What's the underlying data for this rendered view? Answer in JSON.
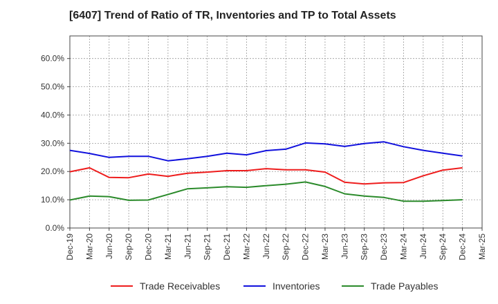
{
  "chart_data": {
    "type": "line",
    "title": "[6407]  Trend of Ratio of TR, Inventories and TP to Total Assets",
    "xlabel": "",
    "ylabel": "",
    "ylim": [
      0,
      0.68
    ],
    "y_ticks": [
      {
        "value": 0.0,
        "label": "0.0%"
      },
      {
        "value": 0.1,
        "label": "10.0%"
      },
      {
        "value": 0.2,
        "label": "20.0%"
      },
      {
        "value": 0.3,
        "label": "30.0%"
      },
      {
        "value": 0.4,
        "label": "40.0%"
      },
      {
        "value": 0.5,
        "label": "50.0%"
      },
      {
        "value": 0.6,
        "label": "60.0%"
      }
    ],
    "x_tick_labels": [
      "Dec-19",
      "Mar-20",
      "Jun-20",
      "Sep-20",
      "Dec-20",
      "Mar-21",
      "Jun-21",
      "Sep-21",
      "Dec-21",
      "Mar-22",
      "Jun-22",
      "Sep-22",
      "Dec-22",
      "Mar-23",
      "Jun-23",
      "Sep-23",
      "Dec-23",
      "Mar-24",
      "Jun-24",
      "Sep-24",
      "Dec-24",
      "Mar-25"
    ],
    "x": [
      "Dec-19",
      "Mar-20",
      "Jun-20",
      "Sep-20",
      "Dec-20",
      "Mar-21",
      "Jun-21",
      "Sep-21",
      "Dec-21",
      "Mar-22",
      "Jun-22",
      "Sep-22",
      "Dec-22",
      "Mar-23",
      "Jun-23",
      "Sep-23",
      "Dec-23",
      "Mar-24",
      "Jun-24",
      "Sep-24",
      "Dec-24"
    ],
    "grid": true,
    "legend_position": "bottom",
    "series": [
      {
        "name": "Trade Receivables",
        "color": "#ee1c1c",
        "values": [
          0.199,
          0.213,
          0.179,
          0.178,
          0.191,
          0.183,
          0.194,
          0.198,
          0.203,
          0.203,
          0.21,
          0.206,
          0.206,
          0.198,
          0.162,
          0.156,
          0.16,
          0.161,
          0.185,
          0.205,
          0.213
        ]
      },
      {
        "name": "Inventories",
        "color": "#1010dd",
        "values": [
          0.275,
          0.264,
          0.25,
          0.254,
          0.254,
          0.238,
          0.245,
          0.254,
          0.265,
          0.259,
          0.274,
          0.279,
          0.301,
          0.298,
          0.289,
          0.299,
          0.305,
          0.288,
          0.275,
          0.265,
          0.255
        ]
      },
      {
        "name": "Trade Payables",
        "color": "#2a8a2a",
        "values": [
          0.099,
          0.113,
          0.111,
          0.098,
          0.099,
          0.119,
          0.139,
          0.142,
          0.146,
          0.144,
          0.15,
          0.155,
          0.163,
          0.147,
          0.121,
          0.113,
          0.108,
          0.095,
          0.095,
          0.097,
          0.1
        ]
      }
    ]
  }
}
